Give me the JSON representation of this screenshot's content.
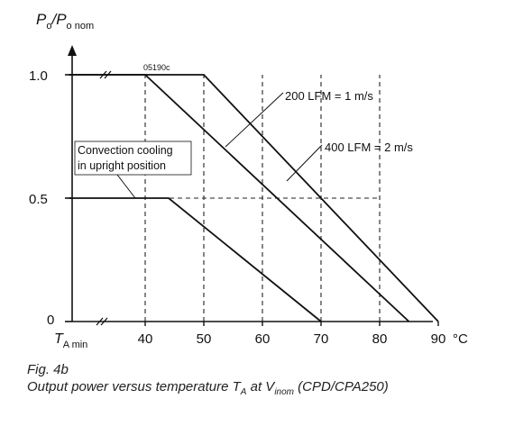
{
  "chart_data": {
    "type": "line",
    "figure_code": "05190c",
    "ylabel": {
      "base": "P",
      "sub1": "o",
      "sep": "/P",
      "sub2": "o nom"
    },
    "xlabel": "°C",
    "x_origin_label": {
      "base": "T",
      "sub": "A min"
    },
    "y_origin_label": "0",
    "xticks": [
      40,
      50,
      60,
      70,
      80,
      90
    ],
    "yticks": [
      {
        "value": 0.5,
        "label": "0.5"
      },
      {
        "value": 1.0,
        "label": "1.0"
      }
    ],
    "xlim": [
      27,
      92
    ],
    "ylim": [
      0,
      1.2
    ],
    "dashed_gridlines_x": [
      40,
      50,
      60,
      70,
      80
    ],
    "dashed_gridlines_y": [
      0.5
    ],
    "series": [
      {
        "name": "Convection cooling in upright position",
        "points": [
          [
            27,
            0.5
          ],
          [
            44,
            0.5
          ],
          [
            70,
            0
          ]
        ]
      },
      {
        "name": "200 LFM = 1 m/s",
        "points": [
          [
            27,
            1.0
          ],
          [
            40,
            1.0
          ],
          [
            85,
            0
          ]
        ]
      },
      {
        "name": "400 LFM = 2 m/s",
        "points": [
          [
            27,
            1.0
          ],
          [
            50,
            1.0
          ],
          [
            90,
            0
          ]
        ]
      }
    ],
    "annotations": [
      {
        "series": 0,
        "lines": [
          "Convection cooling",
          "in upright position"
        ]
      },
      {
        "series": 1,
        "lines": [
          "200 LFM = 1 m/s"
        ]
      },
      {
        "series": 2,
        "lines": [
          "400 LFM = 2 m/s"
        ]
      }
    ]
  },
  "caption": {
    "fig": "Fig. 4b",
    "title_pre": "Output power versus temperature ",
    "t_base": "T",
    "t_sub": "A",
    "at": " at V",
    "v_sub": "inom",
    "suffix": " (CPD/CPA250)"
  }
}
